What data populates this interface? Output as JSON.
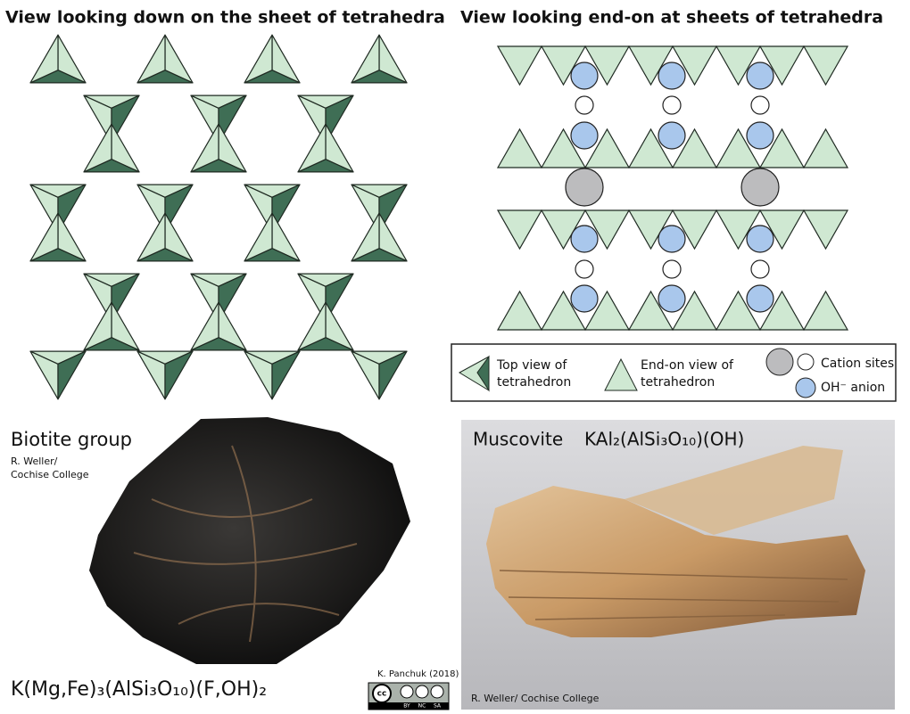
{
  "panels": {
    "top_view": {
      "title": "View looking down on the sheet of tetrahedra"
    },
    "end_view": {
      "title": "View looking end-on at sheets of tetrahedra"
    }
  },
  "legend": {
    "top_view": [
      "Top view of",
      "tetrahedron"
    ],
    "end_view": [
      "End-on view of",
      "tetrahedron"
    ],
    "cation": "Cation sites",
    "anion": "OH⁻ anion"
  },
  "photos": {
    "biotite": {
      "name": "Biotite group",
      "credit": [
        "R. Weller/",
        "Cochise College"
      ],
      "formula": "K(Mg,Fe)₃(AlSi₃O₁₀)(F,OH)₂"
    },
    "muscovite": {
      "name": "Muscovite",
      "formula": "KAl₂(AlSi₃O₁₀)(OH)",
      "credit": "R. Weller/ Cochise College"
    }
  },
  "license": {
    "author": "K. Panchuk (2018)",
    "badge": [
      "cc",
      "BY",
      "NC",
      "SA"
    ]
  }
}
